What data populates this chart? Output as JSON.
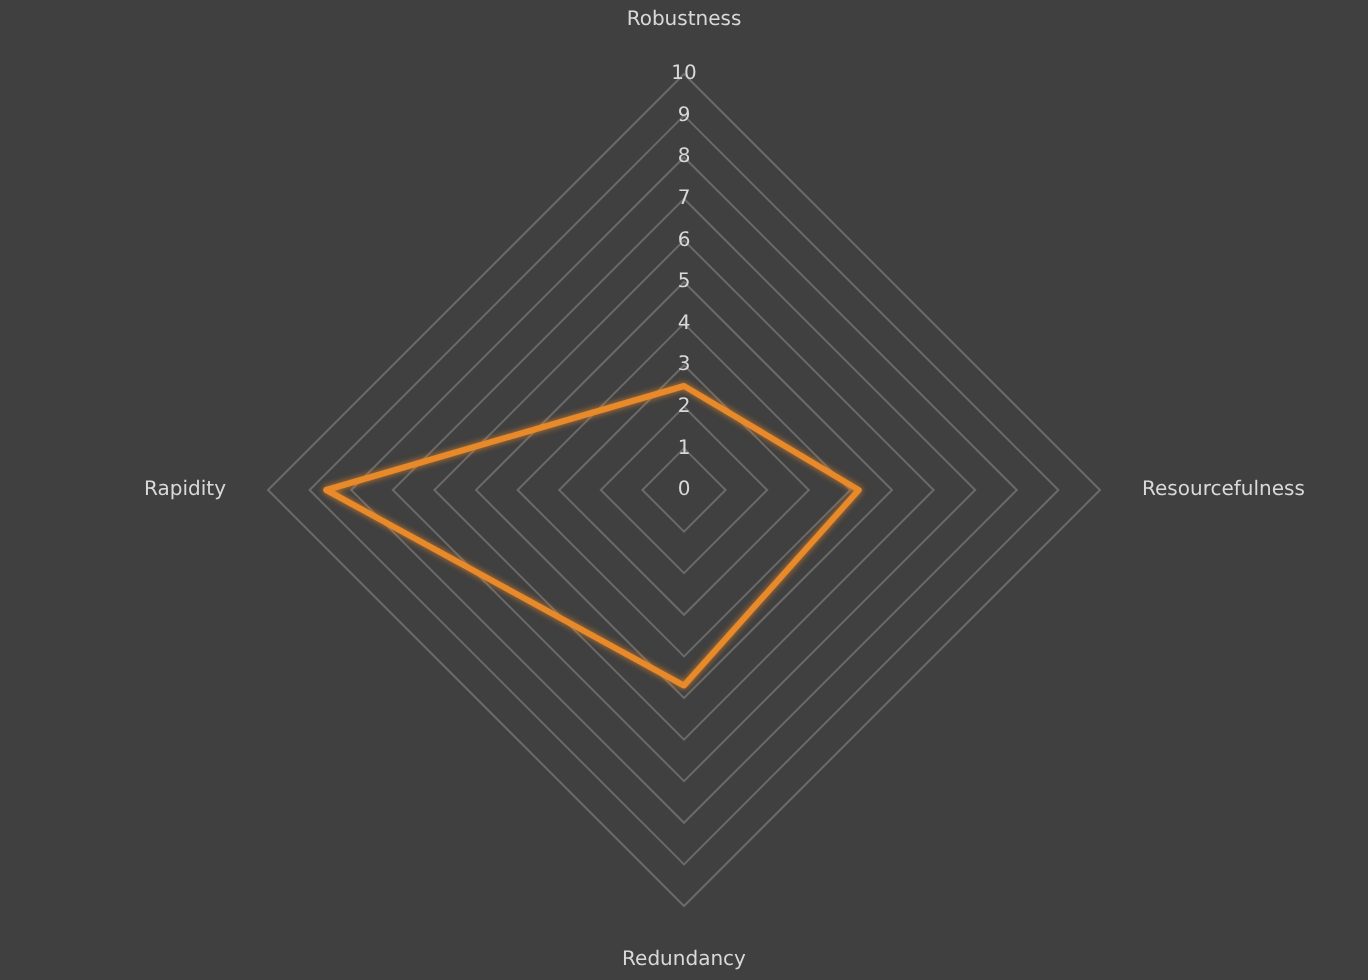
{
  "chart_data": {
    "type": "radar",
    "categories": [
      "Robustness",
      "Resourcefulness",
      "Redundancy",
      "Rapidity"
    ],
    "series": [
      {
        "color": "#e8892a",
        "values": [
          2.5,
          4.2,
          4.7,
          8.6
        ]
      }
    ],
    "ylim": [
      0,
      10
    ],
    "yticks": [
      0,
      1,
      2,
      3,
      4,
      5,
      6,
      7,
      8,
      9,
      10
    ],
    "grid": true,
    "legend": false,
    "marker": "none"
  }
}
